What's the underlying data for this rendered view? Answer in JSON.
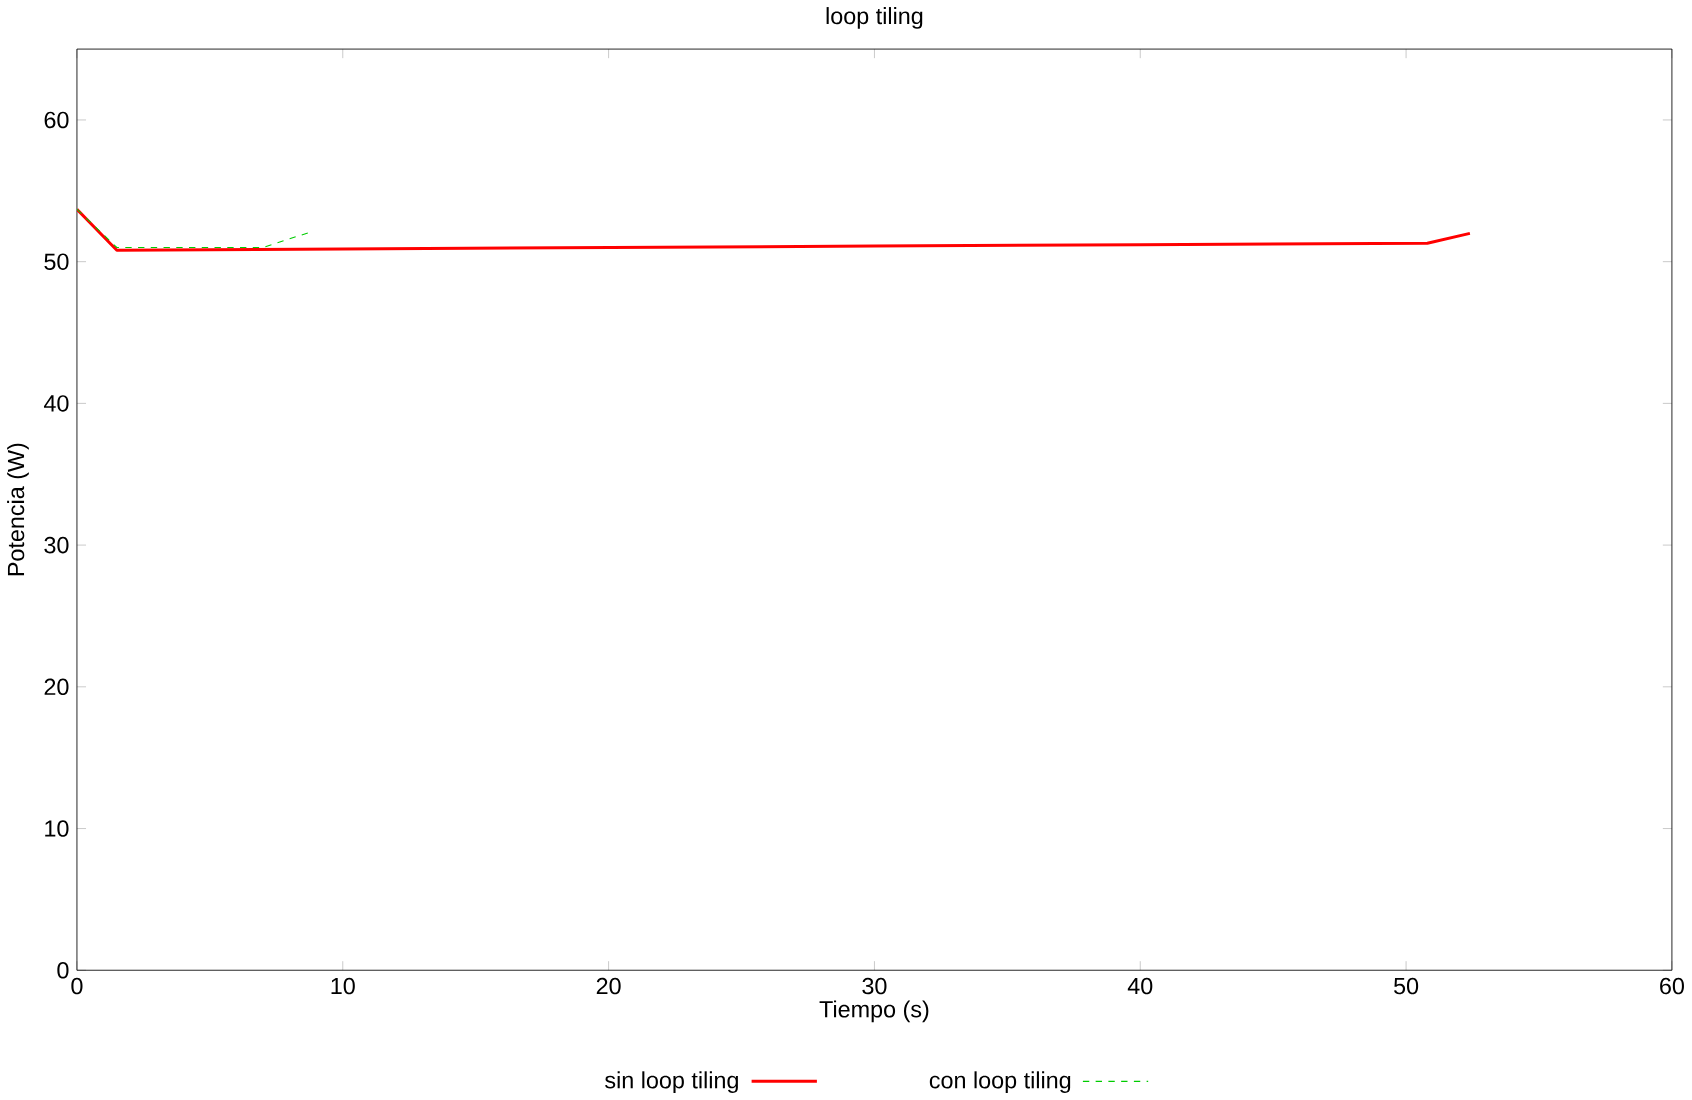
{
  "chart_data": {
    "type": "line",
    "title": "loop tiling",
    "xlabel": "Tiempo (s)",
    "ylabel": "Potencia (W)",
    "xlim": [
      0,
      60
    ],
    "ylim": [
      0,
      65
    ],
    "xticks": [
      0,
      10,
      20,
      30,
      40,
      50,
      60
    ],
    "yticks": [
      0,
      10,
      20,
      30,
      40,
      50,
      60
    ],
    "legend": "bottom",
    "grid": false,
    "series": [
      {
        "name": "sin loop tiling",
        "color": "#ff0000",
        "line_style": "solid",
        "x": [
          0,
          1.5,
          10,
          20,
          30,
          40,
          50.8,
          52.4
        ],
        "values": [
          53.7,
          50.8,
          50.9,
          51.0,
          51.1,
          51.2,
          51.3,
          52.0
        ]
      },
      {
        "name": "con loop tiling",
        "color": "#00cc00",
        "line_style": "dashed",
        "x": [
          0,
          1.5,
          7,
          8.8
        ],
        "values": [
          53.7,
          51.0,
          51.0,
          52.1
        ]
      }
    ]
  }
}
